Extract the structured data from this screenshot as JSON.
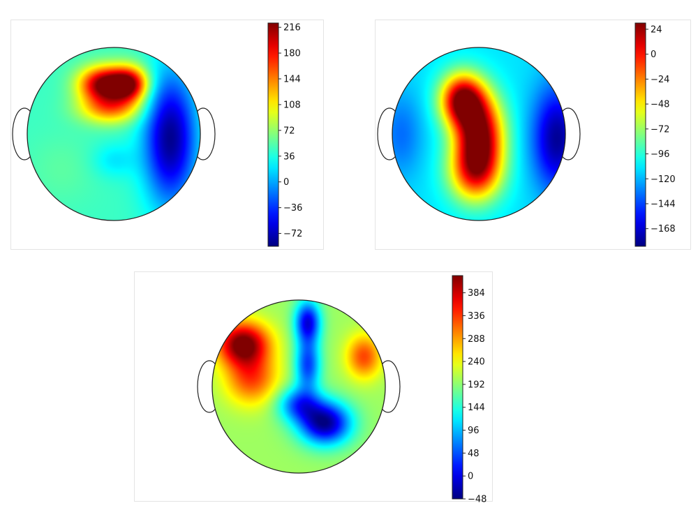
{
  "chart_data": [
    {
      "type": "heatmap",
      "subtype": "scalp topographic map",
      "colormap": "jet",
      "colorbar_range": [
        -90,
        222
      ],
      "colorbar_ticks": [
        216,
        180,
        144,
        108,
        72,
        36,
        0,
        -36,
        -72
      ],
      "colorbar_tick_labels": [
        "216",
        "180",
        "144",
        "108",
        "72",
        "36",
        "0",
        "−36",
        "−72"
      ],
      "base_value": 45,
      "blobs": [
        {
          "u": -0.12,
          "v": -0.58,
          "value": 220,
          "rx": 0.28,
          "ry": 0.2
        },
        {
          "u": 0.18,
          "v": -0.58,
          "value": 200,
          "rx": 0.22,
          "ry": 0.2
        },
        {
          "u": -0.05,
          "v": -0.3,
          "value": 140,
          "rx": 0.35,
          "ry": 0.18
        },
        {
          "u": 0.65,
          "v": 0.05,
          "value": -85,
          "rx": 0.3,
          "ry": 0.75
        },
        {
          "u": 0.0,
          "v": 0.3,
          "value": 20,
          "rx": 0.25,
          "ry": 0.2
        },
        {
          "u": -0.6,
          "v": 0.4,
          "value": 55,
          "rx": 0.4,
          "ry": 0.4
        }
      ]
    },
    {
      "type": "heatmap",
      "subtype": "scalp topographic map",
      "colormap": "jet",
      "colorbar_range": [
        -185,
        30
      ],
      "colorbar_ticks": [
        24,
        0,
        -24,
        -48,
        -72,
        -96,
        -120,
        -144,
        -168
      ],
      "colorbar_tick_labels": [
        "24",
        "0",
        "−24",
        "−48",
        "−72",
        "−96",
        "−120",
        "−144",
        "−168"
      ],
      "base_value": -110,
      "blobs": [
        {
          "u": -0.2,
          "v": -0.4,
          "value": 20,
          "rx": 0.25,
          "ry": 0.3
        },
        {
          "u": 0.0,
          "v": 0.0,
          "value": 28,
          "rx": 0.28,
          "ry": 0.45
        },
        {
          "u": -0.05,
          "v": 0.45,
          "value": -20,
          "rx": 0.3,
          "ry": 0.35
        },
        {
          "u": 0.9,
          "v": 0.05,
          "value": -180,
          "rx": 0.28,
          "ry": 0.6
        },
        {
          "u": -0.9,
          "v": 0.0,
          "value": -135,
          "rx": 0.25,
          "ry": 0.5
        }
      ]
    },
    {
      "type": "heatmap",
      "subtype": "scalp topographic map",
      "colormap": "jet",
      "colorbar_range": [
        -48,
        420
      ],
      "colorbar_ticks": [
        384,
        336,
        288,
        240,
        192,
        144,
        96,
        48,
        0,
        -48
      ],
      "colorbar_tick_labels": [
        "384",
        "336",
        "288",
        "240",
        "192",
        "144",
        "96",
        "48",
        "0",
        "−48"
      ],
      "base_value": 200,
      "blobs": [
        {
          "u": -0.65,
          "v": -0.5,
          "value": 430,
          "rx": 0.3,
          "ry": 0.25
        },
        {
          "u": -0.55,
          "v": -0.1,
          "value": 330,
          "rx": 0.3,
          "ry": 0.3
        },
        {
          "u": 0.75,
          "v": -0.35,
          "value": 330,
          "rx": 0.2,
          "ry": 0.25
        },
        {
          "u": 0.1,
          "v": -0.75,
          "value": 0,
          "rx": 0.15,
          "ry": 0.25
        },
        {
          "u": 0.1,
          "v": -0.25,
          "value": 40,
          "rx": 0.15,
          "ry": 0.3
        },
        {
          "u": 0.3,
          "v": 0.42,
          "value": -40,
          "rx": 0.3,
          "ry": 0.25
        },
        {
          "u": 0.0,
          "v": 0.2,
          "value": 60,
          "rx": 0.25,
          "ry": 0.2
        }
      ]
    }
  ]
}
